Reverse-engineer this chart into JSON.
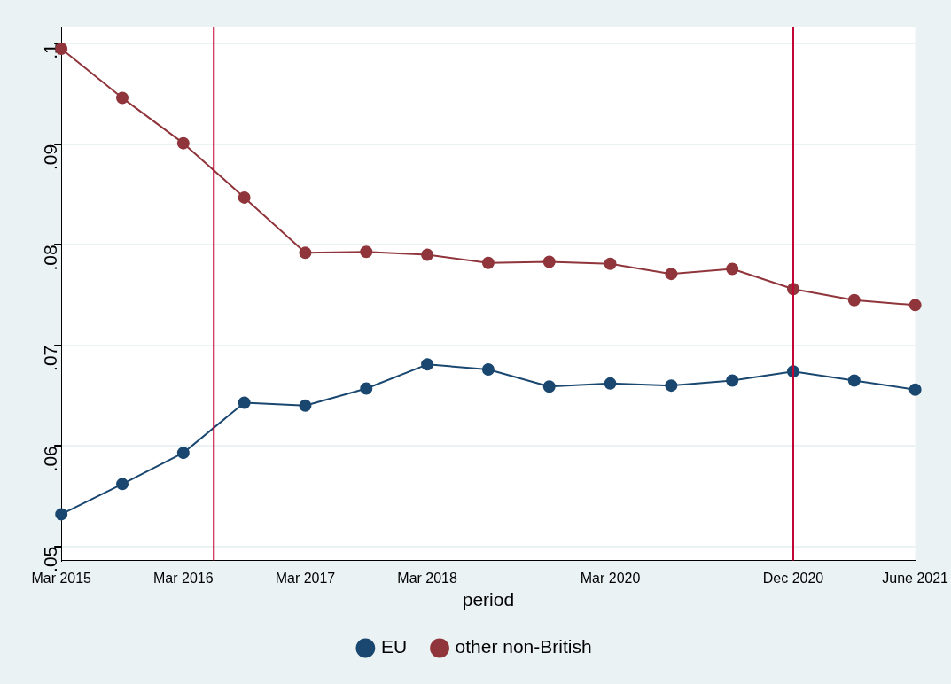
{
  "chart_data": {
    "type": "line",
    "xlabel": "period",
    "categories": [
      "Mar 2015",
      null,
      "Mar 2016",
      null,
      "Mar 2017",
      null,
      "Mar 2018",
      null,
      null,
      "Mar 2020",
      null,
      null,
      "Dec 2020",
      null,
      "June 2021"
    ],
    "series": [
      {
        "name": "EU",
        "color": "#1a476f",
        "values": [
          0.0532,
          0.0562,
          0.0593,
          0.0643,
          0.064,
          0.0657,
          0.0681,
          0.0676,
          0.0659,
          0.0662,
          0.066,
          0.0665,
          0.0674,
          0.0665,
          0.0656
        ]
      },
      {
        "name": "other non-British",
        "color": "#90353b",
        "values": [
          0.0995,
          0.0946,
          0.0901,
          0.0847,
          0.0792,
          0.0793,
          0.079,
          0.0782,
          0.0783,
          0.0781,
          0.0771,
          0.0776,
          0.0756,
          0.0745,
          0.074
        ]
      }
    ],
    "ylim": [
      0.0486,
      0.1017
    ],
    "yticks": [
      {
        "value": 0.05,
        "label": ".05"
      },
      {
        "value": 0.06,
        "label": ".06"
      },
      {
        "value": 0.07,
        "label": ".07"
      },
      {
        "value": 0.08,
        "label": ".08"
      },
      {
        "value": 0.09,
        "label": ".09"
      },
      {
        "value": 0.1,
        "label": ".1"
      }
    ],
    "ref_lines": [
      {
        "axis": "x",
        "value": "Dec 2020",
        "label": null,
        "color": "#c10534"
      }
    ],
    "grid": "y",
    "legend": "bottom",
    "marker": "circle",
    "line_style": "solid"
  }
}
